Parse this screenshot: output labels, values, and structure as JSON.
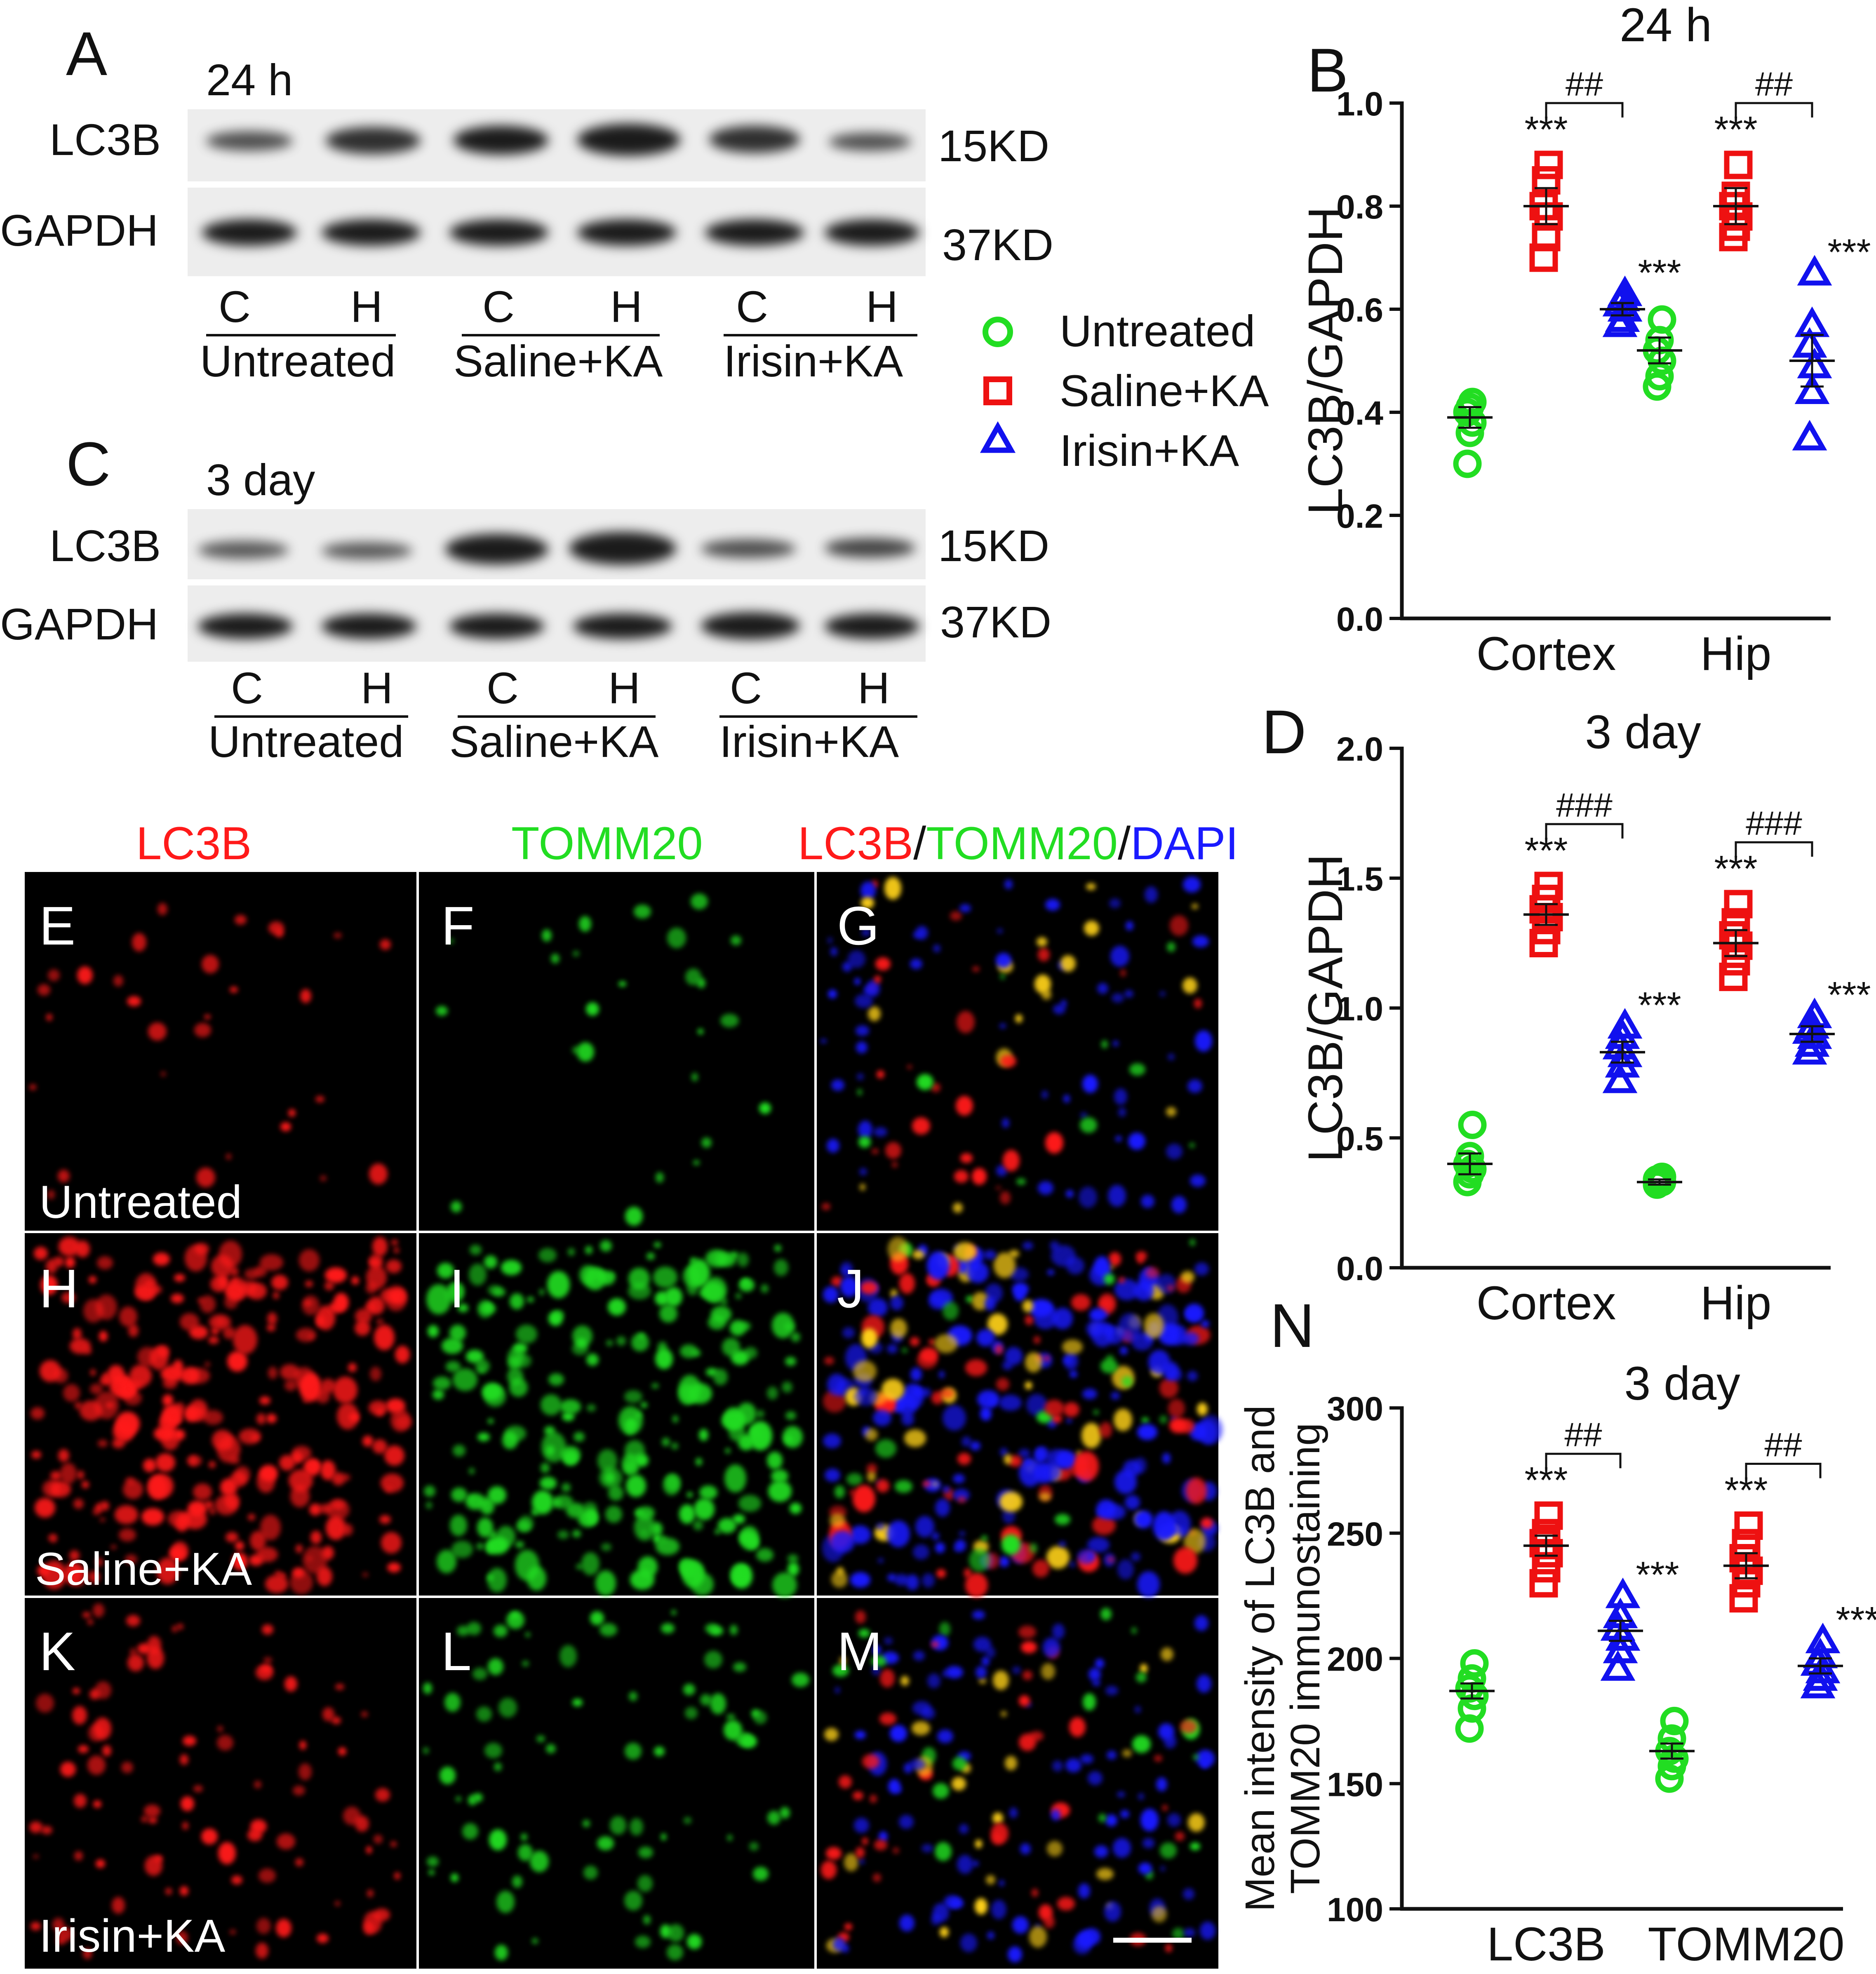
{
  "panel_labels": {
    "A": "A",
    "B": "B",
    "C": "C",
    "D": "D",
    "N": "N"
  },
  "blot_24h": {
    "time": "24 h",
    "rows": [
      "LC3B",
      "GAPDH"
    ],
    "sizes": [
      "15KD",
      "37KD"
    ],
    "lanes": [
      "C",
      "H",
      "C",
      "H",
      "C",
      "H"
    ],
    "groups": [
      "Untreated",
      "Saline+KA",
      "Irisin+KA"
    ]
  },
  "blot_3day": {
    "time": "3 day",
    "rows": [
      "LC3B",
      "GAPDH"
    ],
    "sizes": [
      "15KD",
      "37KD"
    ],
    "lanes": [
      "C",
      "H",
      "C",
      "H",
      "C",
      "H"
    ],
    "groups": [
      "Untreated",
      "Saline+KA",
      "Irisin+KA"
    ]
  },
  "legend": [
    {
      "label": "Untreated",
      "marker": "circle",
      "color": "#22dd22"
    },
    {
      "label": "Saline+KA",
      "marker": "square",
      "color": "#ee1111"
    },
    {
      "label": "Irisin+KA",
      "marker": "triangle",
      "color": "#1111ee"
    }
  ],
  "micro": {
    "col_titles": {
      "c1": "LC3B",
      "c2": "TOMM20",
      "c3a": "LC3B",
      "slash1": "/",
      "c3b": "TOMM20",
      "slash2": "/",
      "c3c": "DAPI"
    },
    "title_colors": {
      "red": "#ff1a1a",
      "green": "#22dd22",
      "blue": "#1a1aff"
    },
    "letters": [
      "E",
      "F",
      "G",
      "H",
      "I",
      "J",
      "K",
      "L",
      "M"
    ],
    "row_labels": [
      "Untreated",
      "Saline+KA",
      "Irisin+KA"
    ]
  },
  "chart_data": [
    {
      "panel": "B",
      "type": "scatter",
      "title": "24 h",
      "ylabel": "LC3B/GAPDH",
      "categories": [
        "Cortex",
        "Hip"
      ],
      "ylim": [
        0,
        1.0
      ],
      "yticks": [
        "0.0",
        "0.2",
        "0.4",
        "0.6",
        "0.8",
        "1.0"
      ],
      "series": [
        {
          "name": "Untreated",
          "color": "#22dd22",
          "marker": "circle",
          "mean": [
            0.39,
            0.52
          ],
          "sem": [
            0.02,
            0.025
          ],
          "points": [
            [
              0.3,
              0.36,
              0.38,
              0.4,
              0.41,
              0.42
            ],
            [
              0.45,
              0.47,
              0.5,
              0.52,
              0.54,
              0.58
            ]
          ]
        },
        {
          "name": "Saline+KA",
          "color": "#ee1111",
          "marker": "square",
          "mean": [
            0.8,
            0.8
          ],
          "sem": [
            0.035,
            0.035
          ],
          "points": [
            [
              0.7,
              0.74,
              0.78,
              0.8,
              0.85,
              0.88
            ],
            [
              0.74,
              0.76,
              0.78,
              0.8,
              0.82,
              0.88
            ]
          ]
        },
        {
          "name": "Irisin+KA",
          "color": "#1111ee",
          "marker": "triangle",
          "mean": [
            0.6,
            0.5
          ],
          "sem": [
            0.012,
            0.05
          ],
          "points": [
            [
              0.57,
              0.58,
              0.6,
              0.61,
              0.62,
              0.63
            ],
            [
              0.35,
              0.44,
              0.49,
              0.53,
              0.57,
              0.67
            ]
          ]
        }
      ],
      "annotations": {
        "stars": "***",
        "hash": "##"
      }
    },
    {
      "panel": "D",
      "type": "scatter",
      "title": "3 day",
      "ylabel": "LC3B/GAPDH",
      "categories": [
        "Cortex",
        "Hip"
      ],
      "ylim": [
        0,
        2.0
      ],
      "yticks": [
        "0.0",
        "0.5",
        "1.0",
        "1.5",
        "2.0"
      ],
      "series": [
        {
          "name": "Untreated",
          "color": "#22dd22",
          "marker": "circle",
          "mean": [
            0.4,
            0.33
          ],
          "sem": [
            0.04,
            0.01
          ],
          "points": [
            [
              0.33,
              0.36,
              0.38,
              0.4,
              0.43,
              0.55
            ],
            [
              0.32,
              0.33,
              0.33,
              0.34,
              0.34,
              0.35
            ]
          ]
        },
        {
          "name": "Saline+KA",
          "color": "#ee1111",
          "marker": "square",
          "mean": [
            1.36,
            1.25
          ],
          "sem": [
            0.04,
            0.05
          ],
          "points": [
            [
              1.25,
              1.3,
              1.35,
              1.38,
              1.42,
              1.47
            ],
            [
              1.12,
              1.18,
              1.24,
              1.28,
              1.33,
              1.4
            ]
          ]
        },
        {
          "name": "Irisin+KA",
          "color": "#1111ee",
          "marker": "triangle",
          "mean": [
            0.83,
            0.9
          ],
          "sem": [
            0.04,
            0.03
          ],
          "points": [
            [
              0.72,
              0.78,
              0.82,
              0.85,
              0.89,
              0.93
            ],
            [
              0.83,
              0.86,
              0.89,
              0.91,
              0.93,
              0.97
            ]
          ]
        }
      ],
      "annotations": {
        "stars": "***",
        "hash": "###"
      }
    },
    {
      "panel": "N",
      "type": "scatter",
      "title": "3 day",
      "ylabel_line1": "Mean intensity of LC3B and",
      "ylabel_line2": "TOMM20 immunostaining",
      "categories": [
        "LC3B",
        "TOMM20"
      ],
      "ylim": [
        100,
        300
      ],
      "yticks": [
        "100",
        "150",
        "200",
        "250",
        "300"
      ],
      "series": [
        {
          "name": "Untreated",
          "color": "#22dd22",
          "marker": "circle",
          "mean": [
            187,
            163
          ],
          "sem": [
            3,
            3
          ],
          "points": [
            [
              172,
              180,
              185,
              188,
              192,
              198
            ],
            [
              152,
              157,
              160,
              163,
              168,
              175
            ]
          ]
        },
        {
          "name": "Saline+KA",
          "color": "#ee1111",
          "marker": "square",
          "mean": [
            245,
            237
          ],
          "sem": [
            4,
            5
          ],
          "points": [
            [
              230,
              236,
              242,
              246,
              250,
              257
            ],
            [
              224,
              230,
              235,
              240,
              246,
              253
            ]
          ]
        },
        {
          "name": "Irisin+KA",
          "color": "#1111ee",
          "marker": "triangle",
          "mean": [
            211,
            197
          ],
          "sem": [
            4,
            3
          ],
          "points": [
            [
              196,
              203,
              208,
              212,
              217,
              225
            ],
            [
              189,
              192,
              195,
              198,
              201,
              207
            ]
          ]
        }
      ],
      "annotations": {
        "stars": "***",
        "hash": "##"
      }
    }
  ]
}
